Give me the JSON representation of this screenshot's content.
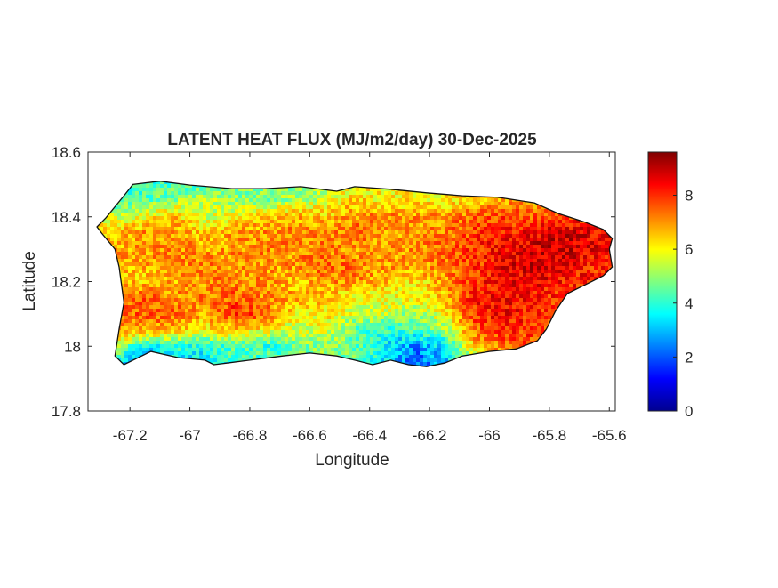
{
  "chart_data": {
    "type": "heatmap",
    "title": "LATENT HEAT FLUX (MJ/m2/day) 30-Dec-2025",
    "xlabel": "Longitude",
    "ylabel": "Latitude",
    "xlim": [
      -67.34,
      -65.58
    ],
    "ylim": [
      17.8,
      18.6
    ],
    "xticks": [
      -67.2,
      -67,
      -66.8,
      -66.6,
      -66.4,
      -66.2,
      -66,
      -65.8,
      -65.6
    ],
    "xtick_labels": [
      "-67.2",
      "-67",
      "-66.8",
      "-66.6",
      "-66.4",
      "-66.2",
      "-66",
      "-65.8",
      "-65.6"
    ],
    "yticks": [
      17.8,
      18,
      18.2,
      18.4,
      18.6
    ],
    "ytick_labels": [
      "17.8",
      "18",
      "18.2",
      "18.4",
      "18.6"
    ],
    "colormap": "jet",
    "clim": [
      0,
      9.6
    ],
    "colorbar_ticks": [
      0,
      2,
      4,
      6,
      8
    ],
    "colorbar_tick_labels": [
      "0",
      "2",
      "4",
      "6",
      "8"
    ],
    "grid": false,
    "grid_lon": [
      -67.25,
      -67.15,
      -67.05,
      -66.95,
      -66.85,
      -66.75,
      -66.65,
      -66.55,
      -66.45,
      -66.35,
      -66.25,
      -66.15,
      -66.05,
      -65.95,
      -65.85,
      -65.75,
      -65.65
    ],
    "grid_lat": [
      18.5,
      18.45,
      18.4,
      18.35,
      18.3,
      18.25,
      18.2,
      18.15,
      18.1,
      18.05,
      18.0,
      17.95
    ],
    "values": [
      [
        null,
        4.0,
        4.2,
        4.5,
        4.8,
        null,
        null,
        null,
        null,
        null,
        null,
        null,
        null,
        null,
        null,
        null,
        null
      ],
      [
        null,
        4.5,
        5.0,
        5.5,
        5.0,
        4.8,
        5.2,
        5.5,
        6.5,
        6.0,
        6.2,
        6.0,
        6.5,
        null,
        null,
        null,
        null
      ],
      [
        null,
        6.0,
        6.5,
        5.5,
        6.0,
        6.5,
        6.8,
        6.5,
        7.0,
        7.2,
        7.0,
        7.0,
        7.5,
        7.8,
        7.5,
        8.0,
        null
      ],
      [
        6.5,
        7.0,
        7.0,
        6.5,
        6.8,
        7.0,
        7.2,
        7.0,
        7.5,
        7.0,
        6.8,
        7.2,
        7.8,
        8.2,
        8.5,
        8.8,
        8.5
      ],
      [
        null,
        7.0,
        7.2,
        6.8,
        7.0,
        7.2,
        7.0,
        7.2,
        7.0,
        6.8,
        7.0,
        7.5,
        8.0,
        8.5,
        8.8,
        9.0,
        8.5
      ],
      [
        null,
        6.8,
        7.0,
        7.2,
        7.0,
        6.8,
        7.0,
        7.5,
        7.2,
        7.0,
        6.8,
        7.2,
        7.8,
        8.5,
        8.8,
        8.5,
        8.0
      ],
      [
        null,
        6.5,
        6.8,
        7.0,
        7.2,
        7.0,
        6.5,
        7.0,
        7.2,
        6.5,
        6.2,
        6.8,
        8.0,
        8.5,
        8.5,
        8.2,
        null
      ],
      [
        null,
        7.5,
        7.0,
        7.2,
        7.5,
        7.0,
        6.8,
        6.5,
        6.0,
        5.8,
        6.0,
        6.5,
        8.2,
        8.5,
        8.2,
        7.8,
        null
      ],
      [
        null,
        7.5,
        7.5,
        6.8,
        8.0,
        7.5,
        6.0,
        6.2,
        5.5,
        5.5,
        5.0,
        6.0,
        8.0,
        8.5,
        8.0,
        null,
        null
      ],
      [
        null,
        7.0,
        6.5,
        6.0,
        6.5,
        6.0,
        5.5,
        5.8,
        4.5,
        4.0,
        4.2,
        5.0,
        7.5,
        8.0,
        7.8,
        null,
        null
      ],
      [
        null,
        3.5,
        4.0,
        3.8,
        4.5,
        4.0,
        4.5,
        5.0,
        4.5,
        3.5,
        2.5,
        3.5,
        6.5,
        7.5,
        null,
        null,
        null
      ],
      [
        null,
        2.0,
        3.5,
        3.5,
        4.0,
        4.5,
        4.5,
        5.0,
        4.5,
        3.5,
        2.0,
        3.0,
        null,
        null,
        null,
        null,
        null
      ]
    ],
    "outline_lonlat": [
      [
        -67.31,
        18.369
      ],
      [
        -67.28,
        18.397
      ],
      [
        -67.22,
        18.465
      ],
      [
        -67.19,
        18.5
      ],
      [
        -67.1,
        18.51
      ],
      [
        -67.0,
        18.498
      ],
      [
        -66.86,
        18.487
      ],
      [
        -66.75,
        18.487
      ],
      [
        -66.63,
        18.493
      ],
      [
        -66.51,
        18.479
      ],
      [
        -66.45,
        18.493
      ],
      [
        -66.33,
        18.485
      ],
      [
        -66.21,
        18.474
      ],
      [
        -66.09,
        18.465
      ],
      [
        -65.97,
        18.46
      ],
      [
        -65.85,
        18.443
      ],
      [
        -65.77,
        18.41
      ],
      [
        -65.68,
        18.383
      ],
      [
        -65.62,
        18.361
      ],
      [
        -65.59,
        18.333
      ],
      [
        -65.6,
        18.3
      ],
      [
        -65.59,
        18.245
      ],
      [
        -65.62,
        18.218
      ],
      [
        -65.68,
        18.19
      ],
      [
        -65.74,
        18.163
      ],
      [
        -65.78,
        18.108
      ],
      [
        -65.81,
        18.053
      ],
      [
        -65.84,
        18.017
      ],
      [
        -65.91,
        17.992
      ],
      [
        -66.0,
        17.984
      ],
      [
        -66.09,
        17.97
      ],
      [
        -66.15,
        17.948
      ],
      [
        -66.21,
        17.937
      ],
      [
        -66.27,
        17.943
      ],
      [
        -66.33,
        17.957
      ],
      [
        -66.39,
        17.943
      ],
      [
        -66.45,
        17.957
      ],
      [
        -66.51,
        17.97
      ],
      [
        -66.6,
        17.979
      ],
      [
        -66.69,
        17.97
      ],
      [
        -66.8,
        17.957
      ],
      [
        -66.92,
        17.943
      ],
      [
        -66.95,
        17.957
      ],
      [
        -67.04,
        17.965
      ],
      [
        -67.13,
        17.984
      ],
      [
        -67.22,
        17.943
      ],
      [
        -67.25,
        17.97
      ],
      [
        -67.236,
        18.053
      ],
      [
        -67.22,
        18.135
      ],
      [
        -67.236,
        18.245
      ],
      [
        -67.25,
        18.3
      ],
      [
        -67.295,
        18.35
      ]
    ]
  }
}
